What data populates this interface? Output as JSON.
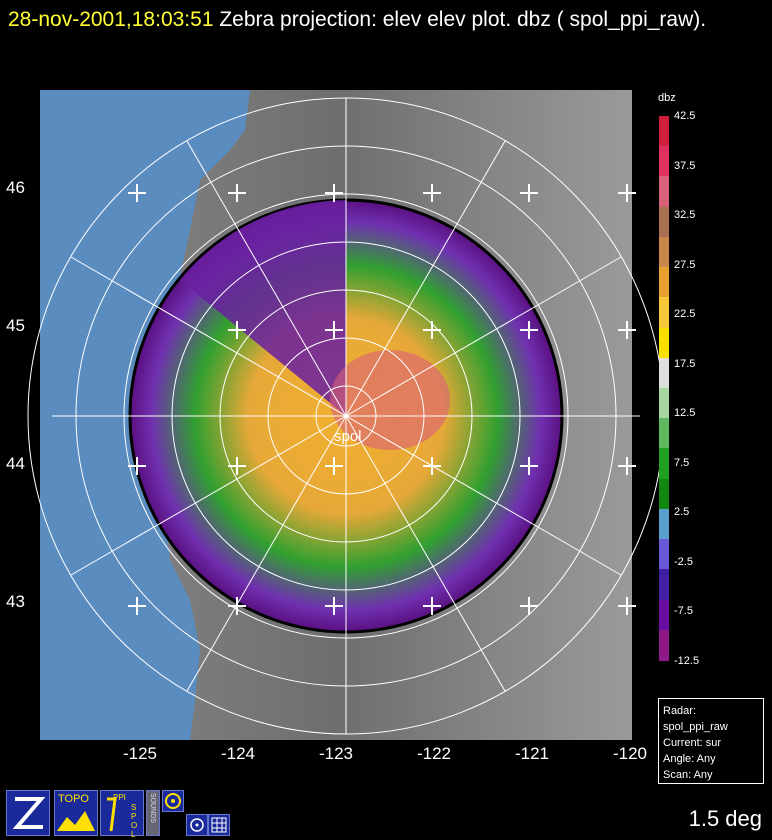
{
  "title": {
    "timestamp": "28-nov-2001,18:03:51",
    "text": " Zebra projection: elev elev  plot.  dbz ( spol_ppi_raw)."
  },
  "axes": {
    "y_labels": [
      "46",
      "45",
      "44",
      "43"
    ],
    "x_labels": [
      "-125",
      "-124",
      "-123",
      "-122",
      "-121",
      "-120"
    ]
  },
  "radar_label": "spol",
  "colorbar": {
    "title": "dbz",
    "labels": [
      "42.5",
      "37.5",
      "32.5",
      "27.5",
      "22.5",
      "17.5",
      "12.5",
      "7.5",
      "2.5",
      "-2.5",
      "-7.5",
      "-12.5"
    ],
    "colors": [
      "#d0203c",
      "#e03060",
      "#d86078",
      "#a87050",
      "#c8884a",
      "#e8a030",
      "#f8c838",
      "#f8e000",
      "#e0e0e0",
      "#a8d8a0",
      "#60b860",
      "#20a020",
      "#118811",
      "#5aa0d0",
      "#6a5ad8",
      "#4020a0",
      "#6a10a0",
      "#901888"
    ]
  },
  "info_box": {
    "radar": "Radar: spol_ppi_raw",
    "current": "Current: sur",
    "angle": "Angle: Any",
    "scan": "Scan: Any"
  },
  "elevation": "1.5 deg",
  "toolbar": {
    "topo_label": "TOPO",
    "ppi_label": "PPI",
    "spol_label": "SPOL",
    "sounds_label": "SOUNDS"
  },
  "colors": {
    "ocean": "#5a8cc0",
    "title_timestamp": "#ffff33",
    "background": "#000000"
  }
}
